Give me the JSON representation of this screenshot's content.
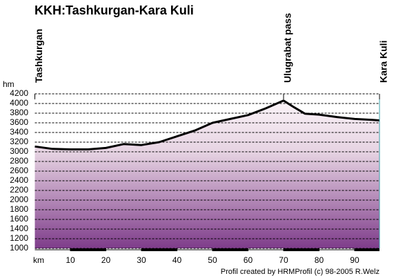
{
  "chart_data": {
    "type": "line",
    "title": "KKH:Tashkurgan-Kara Kuli",
    "y_label": "hm",
    "x_label": "km",
    "credit": "Profil created by HRMProfil (c) 98-2005 R.Welz",
    "x": [
      0,
      5,
      10,
      15,
      20,
      25,
      30,
      35,
      40,
      45,
      50,
      55,
      60,
      65,
      70,
      73,
      76,
      80,
      85,
      90,
      95,
      97
    ],
    "series": [
      {
        "color": "#000000",
        "values": [
          3110,
          3060,
          3050,
          3050,
          3080,
          3160,
          3140,
          3200,
          3320,
          3440,
          3600,
          3680,
          3760,
          3900,
          4060,
          3920,
          3790,
          3770,
          3720,
          3680,
          3660,
          3650
        ]
      }
    ],
    "annotations": [
      {
        "text": "Tashkurgan",
        "x": 0
      },
      {
        "text": "Ulugrabat pass",
        "x": 70
      },
      {
        "text": "Kara Kuli",
        "x": 97
      }
    ],
    "xlim": [
      0,
      97
    ],
    "ylim": [
      1000,
      4200
    ],
    "xticks": [
      10,
      20,
      30,
      40,
      50,
      60,
      70,
      80,
      90
    ],
    "yticks": [
      1000,
      1200,
      1400,
      1600,
      1800,
      2000,
      2200,
      2400,
      2600,
      2800,
      3000,
      3200,
      3400,
      3600,
      3800,
      4000,
      4200
    ],
    "grid": true
  }
}
